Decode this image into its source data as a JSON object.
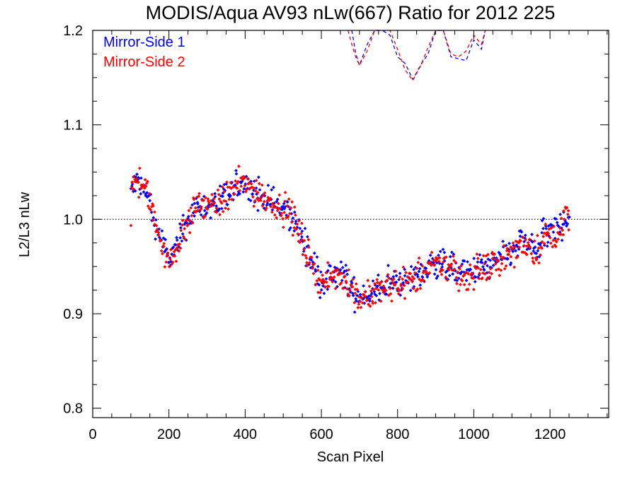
{
  "chart_data": {
    "type": "scatter",
    "title": "MODIS/Aqua AV93 nLw(667) Ratio for 2012 225",
    "xlabel": "Scan Pixel",
    "ylabel": "L2/L3 nLw",
    "xlim": [
      0,
      1354
    ],
    "ylim": [
      0.79,
      1.2
    ],
    "x_ticks": [
      0,
      200,
      400,
      600,
      800,
      1000,
      1200
    ],
    "x_tick_labels": [
      "0",
      "200",
      "400",
      "600",
      "800",
      "1000",
      "1200"
    ],
    "y_ticks": [
      0.8,
      0.9,
      1.0,
      1.1,
      1.2
    ],
    "y_tick_labels": [
      "0.8",
      "0.9",
      "1.0",
      "1.1",
      "1.2"
    ],
    "reference_line": {
      "y": 1.0,
      "style": "dotted",
      "color": "#000000"
    },
    "legend": {
      "placement": "top-left"
    },
    "series": [
      {
        "name": "Mirror-Side 1",
        "color": "#0000ff",
        "marker": "diamond",
        "points_x_range": [
          100,
          1250
        ],
        "profile": [
          [
            100,
            1.03
          ],
          [
            120,
            1.04
          ],
          [
            140,
            1.03
          ],
          [
            160,
            1.0
          ],
          [
            180,
            0.98
          ],
          [
            200,
            0.955
          ],
          [
            220,
            0.97
          ],
          [
            240,
            0.99
          ],
          [
            260,
            1.005
          ],
          [
            280,
            1.015
          ],
          [
            300,
            1.015
          ],
          [
            330,
            1.015
          ],
          [
            360,
            1.025
          ],
          [
            380,
            1.035
          ],
          [
            400,
            1.037
          ],
          [
            420,
            1.03
          ],
          [
            440,
            1.025
          ],
          [
            460,
            1.02
          ],
          [
            480,
            1.015
          ],
          [
            500,
            1.01
          ],
          [
            520,
            1.005
          ],
          [
            540,
            0.99
          ],
          [
            560,
            0.97
          ],
          [
            580,
            0.95
          ],
          [
            600,
            0.935
          ],
          [
            620,
            0.935
          ],
          [
            640,
            0.94
          ],
          [
            660,
            0.94
          ],
          [
            680,
            0.925
          ],
          [
            700,
            0.918
          ],
          [
            720,
            0.92
          ],
          [
            740,
            0.922
          ],
          [
            760,
            0.928
          ],
          [
            780,
            0.932
          ],
          [
            800,
            0.934
          ],
          [
            820,
            0.935
          ],
          [
            840,
            0.938
          ],
          [
            860,
            0.942
          ],
          [
            880,
            0.948
          ],
          [
            900,
            0.955
          ],
          [
            920,
            0.952
          ],
          [
            940,
            0.95
          ],
          [
            960,
            0.945
          ],
          [
            980,
            0.942
          ],
          [
            1000,
            0.945
          ],
          [
            1020,
            0.948
          ],
          [
            1040,
            0.95
          ],
          [
            1060,
            0.955
          ],
          [
            1080,
            0.96
          ],
          [
            1100,
            0.965
          ],
          [
            1120,
            0.975
          ],
          [
            1140,
            0.975
          ],
          [
            1160,
            0.965
          ],
          [
            1180,
            0.98
          ],
          [
            1200,
            0.985
          ],
          [
            1220,
            0.99
          ],
          [
            1250,
            1.005
          ]
        ],
        "dashed_line": {
          "x": [
            680,
            690,
            700,
            720,
            740,
            760,
            780,
            800,
            820,
            840,
            860,
            880,
            900,
            920,
            940,
            960,
            980,
            1000,
            1020,
            1030
          ],
          "y": [
            1.2,
            1.176,
            1.163,
            1.185,
            1.2,
            1.2,
            1.195,
            1.172,
            1.165,
            1.148,
            1.163,
            1.175,
            1.2,
            1.2,
            1.172,
            1.17,
            1.168,
            1.19,
            1.18,
            1.2
          ]
        }
      },
      {
        "name": "Mirror-Side 2",
        "color": "#ff0000",
        "marker": "diamond",
        "points_x_range": [
          100,
          1250
        ],
        "profile": [
          [
            100,
            1.032
          ],
          [
            120,
            1.042
          ],
          [
            140,
            1.032
          ],
          [
            160,
            1.002
          ],
          [
            180,
            0.978
          ],
          [
            200,
            0.952
          ],
          [
            220,
            0.968
          ],
          [
            240,
            0.992
          ],
          [
            260,
            1.006
          ],
          [
            280,
            1.016
          ],
          [
            300,
            1.016
          ],
          [
            330,
            1.016
          ],
          [
            360,
            1.026
          ],
          [
            380,
            1.036
          ],
          [
            400,
            1.038
          ],
          [
            420,
            1.032
          ],
          [
            440,
            1.026
          ],
          [
            460,
            1.021
          ],
          [
            480,
            1.016
          ],
          [
            500,
            1.011
          ],
          [
            520,
            1.006
          ],
          [
            540,
            0.988
          ],
          [
            560,
            0.968
          ],
          [
            580,
            0.948
          ],
          [
            600,
            0.933
          ],
          [
            620,
            0.933
          ],
          [
            640,
            0.942
          ],
          [
            660,
            0.942
          ],
          [
            680,
            0.923
          ],
          [
            700,
            0.916
          ],
          [
            720,
            0.918
          ],
          [
            740,
            0.92
          ],
          [
            760,
            0.926
          ],
          [
            780,
            0.93
          ],
          [
            800,
            0.932
          ],
          [
            820,
            0.933
          ],
          [
            840,
            0.936
          ],
          [
            860,
            0.94
          ],
          [
            880,
            0.946
          ],
          [
            900,
            0.953
          ],
          [
            920,
            0.95
          ],
          [
            940,
            0.948
          ],
          [
            960,
            0.943
          ],
          [
            980,
            0.94
          ],
          [
            1000,
            0.943
          ],
          [
            1020,
            0.946
          ],
          [
            1040,
            0.948
          ],
          [
            1060,
            0.953
          ],
          [
            1080,
            0.958
          ],
          [
            1100,
            0.963
          ],
          [
            1120,
            0.973
          ],
          [
            1140,
            0.973
          ],
          [
            1160,
            0.963
          ],
          [
            1180,
            0.978
          ],
          [
            1200,
            0.983
          ],
          [
            1220,
            0.988
          ],
          [
            1250,
            1.007
          ]
        ],
        "dashed_line": {
          "x": [
            670,
            680,
            690,
            700,
            720,
            740,
            760,
            780,
            800,
            820,
            840,
            860,
            880,
            900,
            920,
            940,
            960,
            980,
            1000,
            1020,
            1030
          ],
          "y": [
            1.2,
            1.185,
            1.172,
            1.163,
            1.178,
            1.2,
            1.2,
            1.2,
            1.18,
            1.158,
            1.147,
            1.162,
            1.182,
            1.2,
            1.2,
            1.175,
            1.172,
            1.178,
            1.195,
            1.185,
            1.2
          ]
        }
      }
    ]
  }
}
